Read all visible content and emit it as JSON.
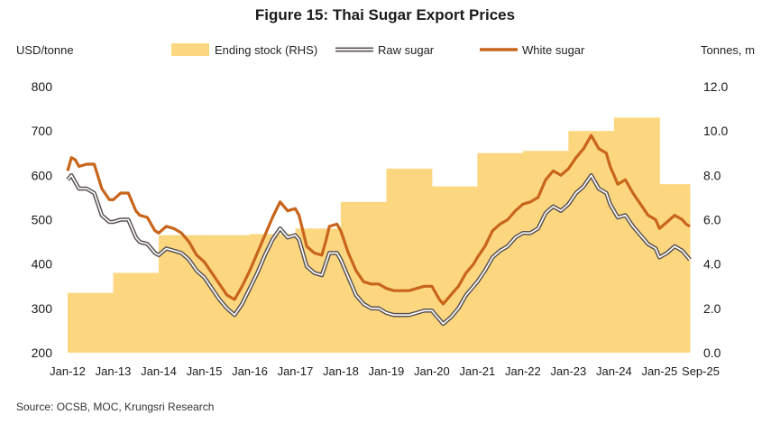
{
  "chart_data": {
    "type": "bar+line",
    "title": "Figure 15: Thai Sugar Export Prices",
    "ylabel_left": "USD/tonne",
    "ylabel_right": "Tonnes, m",
    "ylim_left": [
      200,
      800
    ],
    "ylim_right": [
      0,
      12
    ],
    "yticks_left": [
      "200",
      "300",
      "400",
      "500",
      "600",
      "700",
      "800"
    ],
    "yticks_right": [
      "0.0",
      "2.0",
      "4.0",
      "6.0",
      "8.0",
      "10.0",
      "12.0"
    ],
    "xticks": [
      "Jan-12",
      "Jan-13",
      "Jan-14",
      "Jan-15",
      "Jan-16",
      "Jan-17",
      "Jan-18",
      "Jan-19",
      "Jan-20",
      "Jan-21",
      "Jan-22",
      "Jan-23",
      "Jan-24",
      "Jan-25",
      "Sep-25"
    ],
    "x_start": "Jan-12",
    "legend_position": "top",
    "source": "Source: OCSB, MOC, Krungsri Research",
    "ending_stock": {
      "name": "Ending stock (RHS)",
      "color": "#fcd77f",
      "periods": [
        {
          "start": "Jan-12",
          "end": "Jan-13",
          "value": 2.7
        },
        {
          "start": "Jan-13",
          "end": "Jan-14",
          "value": 3.6
        },
        {
          "start": "Jan-14",
          "end": "Jan-15",
          "value": 5.3
        },
        {
          "start": "Jan-15",
          "end": "Jan-16",
          "value": 5.3
        },
        {
          "start": "Jan-16",
          "end": "Jan-17",
          "value": 5.35
        },
        {
          "start": "Jan-17",
          "end": "Jan-18",
          "value": 5.6
        },
        {
          "start": "Jan-18",
          "end": "Jan-19",
          "value": 6.8
        },
        {
          "start": "Jan-19",
          "end": "Jan-20",
          "value": 8.3
        },
        {
          "start": "Jan-20",
          "end": "Jan-21",
          "value": 7.5
        },
        {
          "start": "Jan-21",
          "end": "Jan-22",
          "value": 9.0
        },
        {
          "start": "Jan-22",
          "end": "Jan-23",
          "value": 9.1
        },
        {
          "start": "Jan-23",
          "end": "Jan-24",
          "value": 10.0
        },
        {
          "start": "Jan-24",
          "end": "Jan-25",
          "value": 10.6
        },
        {
          "start": "Jan-25",
          "end": "Sep-25",
          "value": 7.6
        }
      ]
    },
    "series": [
      {
        "name": "White sugar",
        "color": "#c8651b",
        "x": [
          "Jan-12",
          "Feb-12",
          "Mar-12",
          "Apr-12",
          "Jun-12",
          "Aug-12",
          "Oct-12",
          "Dec-12",
          "Jan-13",
          "Mar-13",
          "May-13",
          "Jul-13",
          "Aug-13",
          "Oct-13",
          "Dec-13",
          "Jan-14",
          "Mar-14",
          "May-14",
          "Jul-14",
          "Sep-14",
          "Nov-14",
          "Jan-15",
          "Mar-15",
          "May-15",
          "Jul-15",
          "Sep-15",
          "Nov-15",
          "Jan-16",
          "Mar-16",
          "May-16",
          "Jul-16",
          "Sep-16",
          "Nov-16",
          "Jan-17",
          "Feb-17",
          "Mar-17",
          "Apr-17",
          "Jun-17",
          "Aug-17",
          "Sep-17",
          "Oct-17",
          "Dec-17",
          "Jan-18",
          "Mar-18",
          "May-18",
          "Jul-18",
          "Sep-18",
          "Nov-18",
          "Jan-19",
          "Mar-19",
          "May-19",
          "Jul-19",
          "Sep-19",
          "Nov-19",
          "Jan-20",
          "Mar-20",
          "Apr-20",
          "Jun-20",
          "Aug-20",
          "Oct-20",
          "Dec-20",
          "Jan-21",
          "Mar-21",
          "May-21",
          "Jul-21",
          "Sep-21",
          "Nov-21",
          "Jan-22",
          "Mar-22",
          "May-22",
          "Jul-22",
          "Sep-22",
          "Nov-22",
          "Jan-23",
          "Mar-23",
          "May-23",
          "Jul-23",
          "Sep-23",
          "Nov-23",
          "Dec-23",
          "Jan-24",
          "Feb-24",
          "Apr-24",
          "Jun-24",
          "Aug-24",
          "Oct-24",
          "Dec-24",
          "Jan-25",
          "Mar-25",
          "May-25",
          "Jul-25",
          "Aug-25",
          "Sep-25"
        ],
        "values": [
          610,
          640,
          635,
          620,
          625,
          625,
          570,
          545,
          545,
          560,
          560,
          520,
          510,
          505,
          475,
          470,
          485,
          480,
          470,
          450,
          420,
          405,
          380,
          355,
          330,
          320,
          350,
          385,
          425,
          465,
          505,
          540,
          520,
          525,
          510,
          475,
          440,
          425,
          420,
          450,
          485,
          490,
          475,
          425,
          385,
          360,
          355,
          355,
          345,
          340,
          340,
          340,
          345,
          350,
          350,
          320,
          310,
          330,
          350,
          380,
          400,
          415,
          440,
          475,
          490,
          500,
          520,
          535,
          540,
          550,
          590,
          610,
          600,
          615,
          640,
          660,
          690,
          660,
          650,
          620,
          600,
          580,
          590,
          560,
          535,
          510,
          500,
          480,
          495,
          510,
          500,
          490,
          485
        ],
        "values_note": "approximate monthly path read from chart"
      },
      {
        "name": "Raw sugar",
        "color": "#6b6262",
        "x": [
          "Jan-12",
          "Feb-12",
          "Mar-12",
          "Apr-12",
          "Jun-12",
          "Aug-12",
          "Oct-12",
          "Dec-12",
          "Jan-13",
          "Mar-13",
          "May-13",
          "Jul-13",
          "Aug-13",
          "Oct-13",
          "Dec-13",
          "Jan-14",
          "Mar-14",
          "May-14",
          "Jul-14",
          "Sep-14",
          "Nov-14",
          "Jan-15",
          "Mar-15",
          "May-15",
          "Jul-15",
          "Sep-15",
          "Nov-15",
          "Jan-16",
          "Mar-16",
          "May-16",
          "Jul-16",
          "Sep-16",
          "Nov-16",
          "Jan-17",
          "Feb-17",
          "Mar-17",
          "Apr-17",
          "Jun-17",
          "Aug-17",
          "Sep-17",
          "Oct-17",
          "Dec-17",
          "Jan-18",
          "Mar-18",
          "May-18",
          "Jul-18",
          "Sep-18",
          "Nov-18",
          "Jan-19",
          "Mar-19",
          "May-19",
          "Jul-19",
          "Sep-19",
          "Nov-19",
          "Jan-20",
          "Mar-20",
          "Apr-20",
          "Jun-20",
          "Aug-20",
          "Oct-20",
          "Dec-20",
          "Jan-21",
          "Mar-21",
          "May-21",
          "Jul-21",
          "Sep-21",
          "Nov-21",
          "Jan-22",
          "Mar-22",
          "May-22",
          "Jul-22",
          "Sep-22",
          "Nov-22",
          "Jan-23",
          "Mar-23",
          "May-23",
          "Jul-23",
          "Sep-23",
          "Nov-23",
          "Dec-23",
          "Jan-24",
          "Feb-24",
          "Apr-24",
          "Jun-24",
          "Aug-24",
          "Oct-24",
          "Dec-24",
          "Jan-25",
          "Mar-25",
          "May-25",
          "Jul-25",
          "Aug-25",
          "Sep-25"
        ],
        "values": [
          590,
          600,
          585,
          570,
          570,
          560,
          510,
          495,
          495,
          500,
          500,
          460,
          450,
          445,
          425,
          420,
          435,
          430,
          425,
          410,
          385,
          370,
          345,
          320,
          300,
          285,
          310,
          345,
          380,
          420,
          455,
          480,
          460,
          465,
          455,
          425,
          395,
          380,
          375,
          400,
          425,
          425,
          410,
          370,
          330,
          310,
          300,
          300,
          290,
          285,
          285,
          285,
          290,
          295,
          295,
          275,
          265,
          280,
          300,
          330,
          350,
          360,
          385,
          415,
          430,
          440,
          460,
          470,
          470,
          480,
          515,
          530,
          520,
          535,
          560,
          575,
          600,
          570,
          560,
          535,
          520,
          505,
          510,
          485,
          465,
          445,
          435,
          415,
          425,
          440,
          430,
          420,
          410
        ],
        "values_note": "approximate monthly path read from chart"
      }
    ]
  }
}
